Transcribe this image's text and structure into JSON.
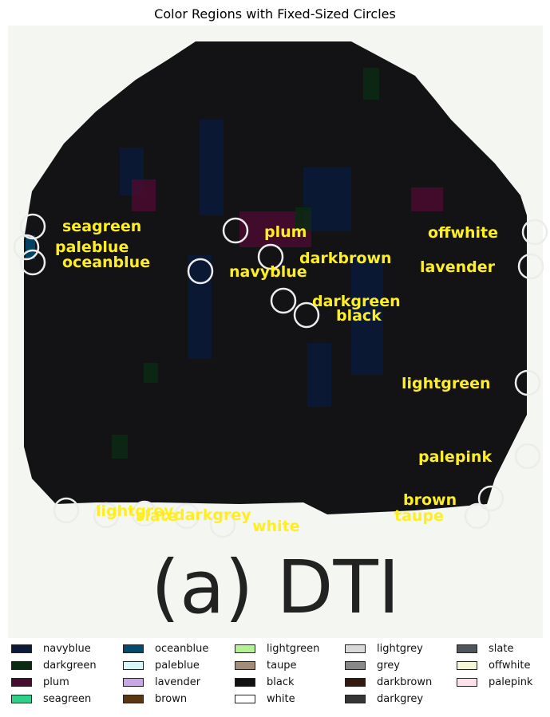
{
  "chart_data": {
    "type": "image-annotation",
    "title": "Color Regions with Fixed-Sized Circles",
    "caption": "(a) DTI",
    "legend": [
      {
        "name": "navyblue",
        "color": "#0b1a3a"
      },
      {
        "name": "darkgreen",
        "color": "#0a2a12"
      },
      {
        "name": "plum",
        "color": "#4a0b30"
      },
      {
        "name": "seagreen",
        "color": "#2ed18a"
      },
      {
        "name": "oceanblue",
        "color": "#004a6e"
      },
      {
        "name": "paleblue",
        "color": "#d8f6f8"
      },
      {
        "name": "lavender",
        "color": "#c9a6e6"
      },
      {
        "name": "brown",
        "color": "#5a3612"
      },
      {
        "name": "lightgreen",
        "color": "#b3f290"
      },
      {
        "name": "taupe",
        "color": "#a08c78"
      },
      {
        "name": "black",
        "color": "#111111"
      },
      {
        "name": "white",
        "color": "#ffffff"
      },
      {
        "name": "lightgrey",
        "color": "#d8d8d8"
      },
      {
        "name": "grey",
        "color": "#888888"
      },
      {
        "name": "darkbrown",
        "color": "#33190d"
      },
      {
        "name": "darkgrey",
        "color": "#353535"
      },
      {
        "name": "slate",
        "color": "#4e565b"
      },
      {
        "name": "offwhite",
        "color": "#f4f6d8"
      },
      {
        "name": "palepink",
        "color": "#fde0ea"
      }
    ],
    "annotations": [
      {
        "label": "seagreen"
      },
      {
        "label": "paleblue"
      },
      {
        "label": "oceanblue"
      },
      {
        "label": "plum"
      },
      {
        "label": "darkbrown"
      },
      {
        "label": "navyblue"
      },
      {
        "label": "darkgreen"
      },
      {
        "label": "black"
      },
      {
        "label": "offwhite"
      },
      {
        "label": "lavender"
      },
      {
        "label": "lightgreen"
      },
      {
        "label": "palepink"
      },
      {
        "label": "brown"
      },
      {
        "label": "taupe"
      },
      {
        "label": "lightgrey"
      },
      {
        "label": "slate"
      },
      {
        "label": "darkgrey"
      },
      {
        "label": "white"
      }
    ],
    "colors": {
      "annotation_text": "#ffee22",
      "circle": "#ececec",
      "background": "#f4f7f1",
      "region": "#131215"
    }
  }
}
